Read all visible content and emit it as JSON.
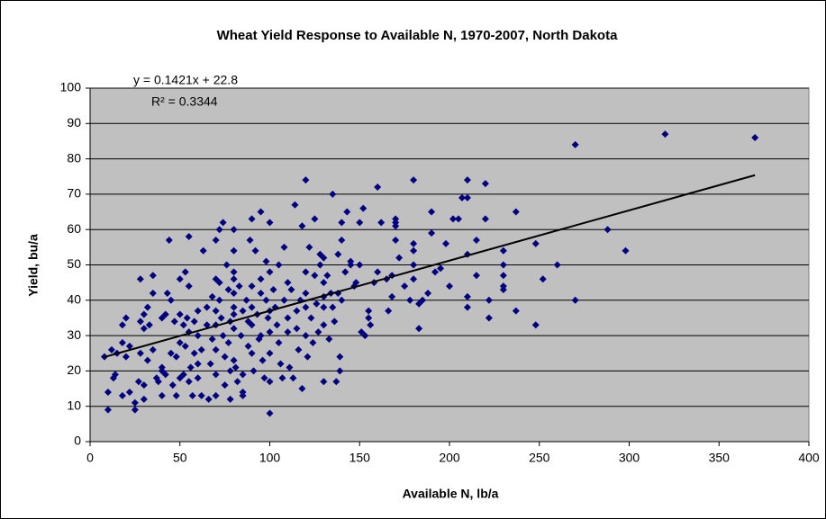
{
  "chart_data": {
    "type": "scatter",
    "title": "Wheat Yield Response to Available N, 1970-2007, North Dakota",
    "xlabel": "Available N, lb/a",
    "ylabel": "Yield, bu/a",
    "annotations": [
      "y = 0.1421x + 22.8",
      "R² = 0.3344"
    ],
    "trendline": {
      "slope": 0.1421,
      "intercept": 22.8,
      "x_start": 8,
      "x_end": 370
    },
    "color": "#000080",
    "background": "#c0c0c0",
    "grid": true,
    "xlim": [
      0,
      400
    ],
    "xticks": [
      0,
      50,
      100,
      150,
      200,
      250,
      300,
      350,
      400
    ],
    "ylim": [
      0,
      100
    ],
    "yticks": [
      0,
      10,
      20,
      30,
      40,
      50,
      60,
      70,
      80,
      90,
      100
    ],
    "x": [
      8,
      10,
      10,
      12,
      13,
      14,
      15,
      18,
      18,
      18,
      20,
      20,
      22,
      22,
      25,
      25,
      27,
      28,
      28,
      28,
      30,
      30,
      30,
      30,
      32,
      32,
      33,
      35,
      35,
      35,
      37,
      38,
      40,
      40,
      40,
      40,
      42,
      42,
      43,
      44,
      45,
      45,
      46,
      47,
      48,
      48,
      50,
      50,
      50,
      50,
      52,
      52,
      53,
      53,
      54,
      55,
      55,
      55,
      55,
      56,
      57,
      58,
      58,
      60,
      60,
      60,
      60,
      62,
      62,
      63,
      65,
      65,
      66,
      67,
      68,
      68,
      70,
      70,
      70,
      70,
      70,
      70,
      70,
      72,
      72,
      72,
      73,
      74,
      74,
      75,
      75,
      76,
      77,
      77,
      78,
      78,
      78,
      80,
      80,
      80,
      80,
      80,
      80,
      80,
      80,
      80,
      81,
      82,
      83,
      84,
      85,
      85,
      85,
      85,
      87,
      88,
      88,
      89,
      90,
      90,
      90,
      90,
      90,
      91,
      92,
      93,
      94,
      95,
      95,
      95,
      95,
      96,
      97,
      98,
      98,
      99,
      100,
      100,
      100,
      100,
      100,
      100,
      100,
      102,
      103,
      104,
      105,
      105,
      106,
      107,
      108,
      108,
      110,
      110,
      110,
      111,
      112,
      113,
      114,
      115,
      115,
      116,
      117,
      118,
      118,
      120,
      120,
      120,
      120,
      120,
      121,
      122,
      123,
      124,
      125,
      125,
      126,
      127,
      128,
      128,
      130,
      130,
      130,
      130,
      130,
      130,
      132,
      133,
      134,
      135,
      135,
      136,
      137,
      138,
      138,
      139,
      139,
      140,
      140,
      140,
      142,
      143,
      145,
      145,
      147,
      148,
      150,
      150,
      151,
      152,
      153,
      155,
      155,
      156,
      158,
      160,
      160,
      162,
      165,
      166,
      168,
      168,
      170,
      170,
      170,
      170,
      172,
      175,
      178,
      180,
      180,
      180,
      180,
      180,
      183,
      183,
      185,
      188,
      190,
      190,
      192,
      195,
      198,
      200,
      202,
      205,
      207,
      210,
      210,
      210,
      210,
      210,
      215,
      215,
      220,
      220,
      222,
      222,
      230,
      230,
      230,
      230,
      230,
      237,
      237,
      248,
      248,
      252,
      260,
      270,
      270,
      288,
      298,
      320,
      370
    ],
    "values": [
      24,
      14,
      9,
      26,
      18,
      19,
      25,
      13,
      28,
      33,
      35,
      24,
      14,
      27,
      11,
      9,
      17,
      46,
      34,
      25,
      16,
      12,
      32,
      36,
      38,
      23,
      33,
      42,
      47,
      26,
      18,
      17,
      13,
      20,
      21,
      35,
      36,
      19,
      42,
      57,
      40,
      25,
      16,
      34,
      13,
      24,
      18,
      36,
      46,
      28,
      19,
      33,
      48,
      27,
      35,
      44,
      31,
      58,
      17,
      21,
      13,
      25,
      34,
      37,
      30,
      22,
      18,
      26,
      13,
      54,
      38,
      33,
      12,
      22,
      29,
      41,
      46,
      57,
      37,
      33,
      26,
      19,
      13,
      60,
      45,
      40,
      35,
      62,
      30,
      24,
      16,
      50,
      43,
      28,
      34,
      20,
      12,
      60,
      54,
      48,
      46,
      42,
      38,
      36,
      32,
      23,
      21,
      17,
      44,
      30,
      37,
      19,
      14,
      13,
      40,
      34,
      27,
      57,
      63,
      44,
      38,
      33,
      25,
      20,
      54,
      36,
      29,
      65,
      46,
      42,
      30,
      23,
      18,
      51,
      40,
      35,
      62,
      48,
      37,
      31,
      25,
      17,
      8,
      43,
      38,
      33,
      50,
      28,
      22,
      18,
      55,
      40,
      45,
      35,
      31,
      21,
      43,
      18,
      67,
      37,
      32,
      26,
      40,
      61,
      15,
      74,
      48,
      42,
      38,
      30,
      24,
      55,
      35,
      28,
      63,
      47,
      39,
      31,
      53,
      50,
      52,
      45,
      41,
      38,
      33,
      17,
      47,
      29,
      42,
      70,
      38,
      34,
      17,
      53,
      42,
      24,
      20,
      62,
      57,
      40,
      48,
      65,
      51,
      50,
      44,
      45,
      62,
      50,
      31,
      66,
      30,
      37,
      35,
      33,
      45,
      72,
      48,
      62,
      46,
      37,
      41,
      47,
      63,
      62,
      61,
      57,
      52,
      44,
      40,
      74,
      56,
      54,
      50,
      46,
      39,
      32,
      40,
      42,
      65,
      59,
      48,
      49,
      56,
      44,
      63,
      63,
      69,
      69,
      74,
      53,
      41,
      38,
      57,
      47,
      73,
      63,
      40,
      35,
      54,
      50,
      47,
      44,
      43,
      65,
      37,
      56,
      33,
      46,
      50,
      84,
      40,
      60,
      54,
      87,
      86
    ]
  }
}
